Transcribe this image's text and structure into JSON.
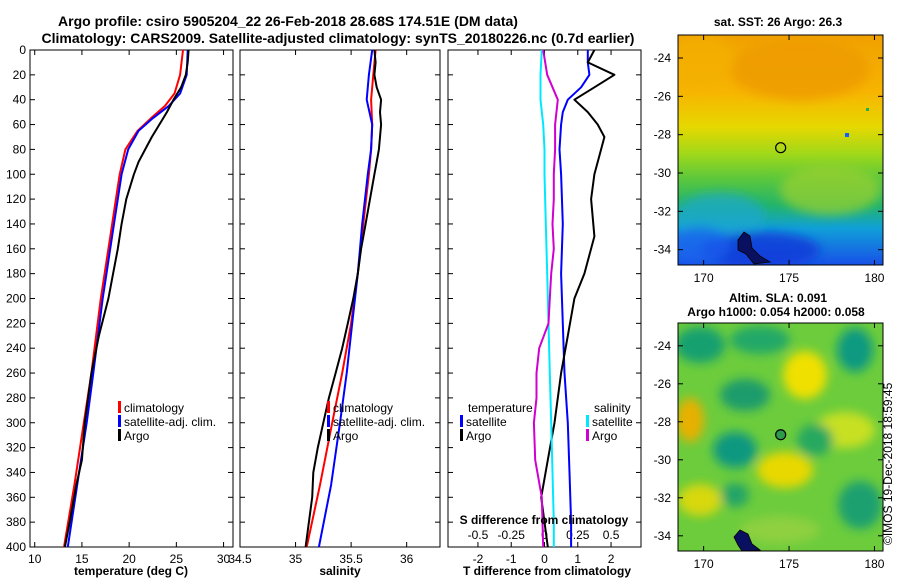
{
  "title": {
    "line1": "Argo profile: csiro 5905204_22 26-Feb-2018 28.68S 174.51E (DM data)",
    "line2": "Climatology: CARS2009. Satellite-adjusted climatology: synTS_20180226.nc (0.7d earlier)"
  },
  "credit": "©IMOS 19-Dec-2018 18:59:45",
  "colors": {
    "climatology": "#ff0000",
    "satellite": "#0000ff",
    "argo": "#000000",
    "s_satellite": "#00e8ff",
    "s_argo": "#d000d0"
  },
  "chart_data": [
    {
      "type": "line",
      "name": "temperature",
      "xlabel": "temperature (deg C)",
      "ylabel": "depth",
      "xlim": [
        9.5,
        31
      ],
      "ylim": [
        0,
        400
      ],
      "y_inverted": true,
      "xticks": [
        "10",
        "15",
        "20",
        "25",
        "30"
      ],
      "yticks": [
        "0",
        "20",
        "40",
        "60",
        "80",
        "100",
        "120",
        "140",
        "160",
        "180",
        "200",
        "220",
        "240",
        "260",
        "280",
        "300",
        "320",
        "340",
        "360",
        "380",
        "400"
      ],
      "legend": [
        "climatology",
        "satellite-adj. clim.",
        "Argo"
      ],
      "series": [
        {
          "name": "climatology",
          "color": "#ff0000",
          "depth": [
            0,
            20,
            35,
            45,
            55,
            65,
            80,
            100,
            120,
            150,
            180,
            200,
            230,
            260,
            300,
            350,
            400
          ],
          "values": [
            25.7,
            25.4,
            24.8,
            23.8,
            22.3,
            20.9,
            19.6,
            19.0,
            18.6,
            18.0,
            17.4,
            17.0,
            16.5,
            16.0,
            15.2,
            14.2,
            13.1
          ]
        },
        {
          "name": "satellite-adj. clim.",
          "color": "#0000ff",
          "depth": [
            0,
            20,
            35,
            45,
            55,
            65,
            80,
            100,
            120,
            150,
            180,
            200,
            230,
            260,
            300,
            350,
            400
          ],
          "values": [
            26.2,
            26.1,
            25.4,
            24.2,
            22.5,
            21.0,
            19.9,
            19.2,
            18.8,
            18.2,
            17.6,
            17.2,
            16.7,
            16.2,
            15.5,
            14.5,
            13.5
          ]
        },
        {
          "name": "Argo",
          "color": "#000000",
          "depth": [
            0,
            10,
            20,
            30,
            40,
            50,
            60,
            70,
            80,
            90,
            100,
            120,
            140,
            160,
            180,
            200,
            230,
            260,
            300,
            330,
            350,
            380,
            400
          ],
          "values": [
            26.3,
            26.2,
            26.0,
            25.5,
            24.7,
            24.0,
            23.2,
            22.4,
            21.7,
            21.0,
            20.5,
            19.7,
            19.2,
            18.8,
            18.3,
            17.8,
            16.8,
            16.0,
            15.3,
            15.0,
            14.4,
            13.7,
            13.2
          ]
        }
      ]
    },
    {
      "type": "line",
      "name": "salinity",
      "xlabel": "salinity",
      "ylabel": "depth",
      "xlim": [
        34.5,
        36.3
      ],
      "ylim": [
        0,
        400
      ],
      "y_inverted": true,
      "xticks": [
        "34.5",
        "35",
        "35.5",
        "36"
      ],
      "legend": [
        "climatology",
        "satellite-adj. clim.",
        "Argo"
      ],
      "series": [
        {
          "name": "climatology",
          "color": "#ff0000",
          "depth": [
            0,
            20,
            40,
            60,
            80,
            100,
            140,
            180,
            220,
            260,
            300,
            350,
            400
          ],
          "values": [
            35.72,
            35.7,
            35.68,
            35.69,
            35.68,
            35.66,
            35.61,
            35.56,
            35.5,
            35.42,
            35.33,
            35.22,
            35.1
          ]
        },
        {
          "name": "satellite-adj. clim.",
          "color": "#0000ff",
          "depth": [
            0,
            20,
            40,
            60,
            80,
            100,
            140,
            180,
            220,
            260,
            300,
            350,
            400
          ],
          "values": [
            35.69,
            35.66,
            35.64,
            35.69,
            35.68,
            35.65,
            35.6,
            35.56,
            35.51,
            35.46,
            35.4,
            35.32,
            35.21
          ]
        },
        {
          "name": "Argo",
          "color": "#000000",
          "depth": [
            0,
            10,
            20,
            30,
            40,
            50,
            60,
            70,
            80,
            90,
            100,
            120,
            140,
            160,
            180,
            200,
            220,
            240,
            260,
            280,
            300,
            320,
            340,
            360,
            380,
            400
          ],
          "values": [
            35.71,
            35.72,
            35.71,
            35.73,
            35.77,
            35.76,
            35.77,
            35.76,
            35.75,
            35.73,
            35.71,
            35.67,
            35.63,
            35.59,
            35.56,
            35.52,
            35.47,
            35.42,
            35.36,
            35.3,
            35.25,
            35.2,
            35.16,
            35.15,
            35.12,
            35.09
          ]
        }
      ]
    },
    {
      "type": "line",
      "name": "difference from climatology",
      "xlabel": "T difference from climatology",
      "x2label": "S difference from climatology",
      "ylabel": "depth",
      "xlim": [
        -2.9,
        2.9
      ],
      "ylim": [
        0,
        400
      ],
      "y_inverted": true,
      "xticks": [
        "-2",
        "-1",
        "0",
        "1",
        "2"
      ],
      "x2ticks": [
        "-0.5",
        "-0.25",
        "0",
        "0.25",
        "0.5"
      ],
      "legend_temperature_title": "temperature",
      "legend_temperature": [
        "satellite",
        "Argo"
      ],
      "legend_salinity_title": "salinity",
      "legend_salinity": [
        "satellite",
        "Argo"
      ],
      "series": [
        {
          "name": "temperature satellite",
          "color": "#0000ff",
          "depth": [
            0,
            10,
            20,
            30,
            40,
            50,
            60,
            80,
            100,
            140,
            180,
            220,
            260,
            300,
            340,
            380,
            400
          ],
          "values": [
            1.3,
            1.3,
            1.35,
            1.1,
            0.7,
            0.55,
            0.5,
            0.45,
            0.5,
            0.55,
            0.5,
            0.55,
            0.6,
            0.7,
            0.75,
            0.8,
            0.8
          ]
        },
        {
          "name": "temperature Argo",
          "color": "#000000",
          "depth": [
            0,
            10,
            20,
            30,
            40,
            50,
            60,
            70,
            80,
            100,
            120,
            150,
            180,
            200,
            230,
            260,
            300,
            330,
            360,
            400
          ],
          "values": [
            1.5,
            1.3,
            2.1,
            1.5,
            0.9,
            1.3,
            1.6,
            1.8,
            1.7,
            1.5,
            1.4,
            1.5,
            1.2,
            0.9,
            0.7,
            0.5,
            0.3,
            0.1,
            -0.1,
            0.1
          ]
        },
        {
          "name": "salinity satellite",
          "color": "#00e8ff",
          "depth": [
            0,
            20,
            40,
            60,
            80,
            100,
            140,
            180,
            220,
            260,
            300,
            340,
            380,
            400
          ],
          "values": [
            -0.02,
            -0.03,
            -0.03,
            -0.01,
            0.0,
            0.0,
            0.01,
            0.02,
            0.03,
            0.04,
            0.05,
            0.06,
            0.07,
            0.07
          ]
        },
        {
          "name": "salinity Argo",
          "color": "#d000d0",
          "depth": [
            0,
            20,
            40,
            60,
            80,
            100,
            120,
            140,
            160,
            180,
            200,
            220,
            240,
            260,
            280,
            300,
            330,
            360,
            400
          ],
          "values": [
            -0.01,
            0.02,
            0.1,
            0.08,
            0.08,
            0.07,
            0.07,
            0.06,
            0.07,
            0.05,
            0.04,
            0.03,
            -0.04,
            -0.06,
            -0.06,
            -0.08,
            -0.07,
            -0.02,
            -0.01
          ]
        }
      ]
    },
    {
      "type": "heatmap",
      "name": "sat. SST map",
      "title": "sat. SST: 26 Argo: 26.3",
      "xlim": [
        168.5,
        180.5
      ],
      "ylim": [
        -34.8,
        -22.8
      ],
      "xticks": [
        "170",
        "175",
        "180"
      ],
      "yticks": [
        "-24",
        "-26",
        "-28",
        "-30",
        "-32",
        "-34"
      ],
      "marker": {
        "lon": 174.51,
        "lat": -28.68
      }
    },
    {
      "type": "heatmap",
      "name": "altimetry SLA map",
      "title_line1": "Altim. SLA: 0.091",
      "title_line2": "Argo h1000: 0.054 h2000: 0.058",
      "xlim": [
        168.5,
        180.5
      ],
      "ylim": [
        -34.8,
        -22.8
      ],
      "xticks": [
        "170",
        "175",
        "180"
      ],
      "yticks": [
        "-24",
        "-26",
        "-28",
        "-30",
        "-32",
        "-34"
      ],
      "marker": {
        "lon": 174.51,
        "lat": -28.68
      }
    }
  ]
}
